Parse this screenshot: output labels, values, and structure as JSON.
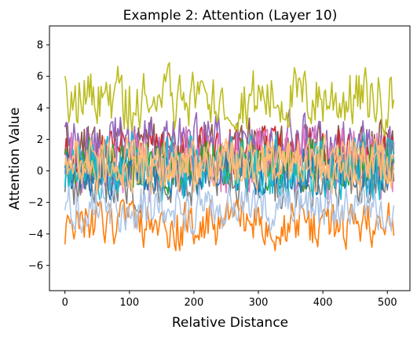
{
  "chart_data": {
    "type": "line",
    "title": "Example 2: Attention (Layer 10)",
    "xlabel": "Relative Distance",
    "ylabel": "Attention Value",
    "xlim": [
      -24,
      535
    ],
    "ylim": [
      -7.6,
      9.2
    ],
    "xticks": [
      0,
      100,
      200,
      300,
      400,
      500
    ],
    "yticks": [
      -6,
      -4,
      -2,
      0,
      2,
      4,
      6,
      8
    ],
    "x_range": [
      0,
      511
    ],
    "grid": false,
    "legend": "none",
    "series": [
      {
        "color": "#8c564b",
        "center": 1.4,
        "amp": 1.6,
        "seed": 11
      },
      {
        "color": "#d62728",
        "center": 1.3,
        "amp": 1.3,
        "seed": 12
      },
      {
        "color": "#9467bd",
        "center": 1.6,
        "amp": 1.7,
        "seed": 13
      },
      {
        "color": "#e377c2",
        "center": 0.6,
        "amp": 2.0,
        "seed": 14
      },
      {
        "color": "#2ca02c",
        "center": 0.4,
        "amp": 1.4,
        "seed": 15
      },
      {
        "color": "#7f7f7f",
        "center": -0.4,
        "amp": 1.6,
        "seed": 16
      },
      {
        "color": "#1f77b4",
        "center": -0.2,
        "amp": 1.3,
        "seed": 17
      },
      {
        "color": "#17becf",
        "center": 0.3,
        "amp": 1.7,
        "seed": 18
      },
      {
        "color": "#ffbb78",
        "center": 0.2,
        "amp": 1.4,
        "seed": 19
      },
      {
        "color": "#ff7f0e",
        "center": -3.4,
        "amp": 1.3,
        "seed": 20
      },
      {
        "color": "#aec7e8",
        "center": -2.4,
        "amp": 1.3,
        "seed": 21
      },
      {
        "color": "#bcbd22",
        "center": 4.6,
        "amp": 1.7,
        "seed": 22
      },
      {
        "color": "#ffbb78",
        "center": 0.7,
        "amp": 1.3,
        "seed": 23
      }
    ]
  }
}
